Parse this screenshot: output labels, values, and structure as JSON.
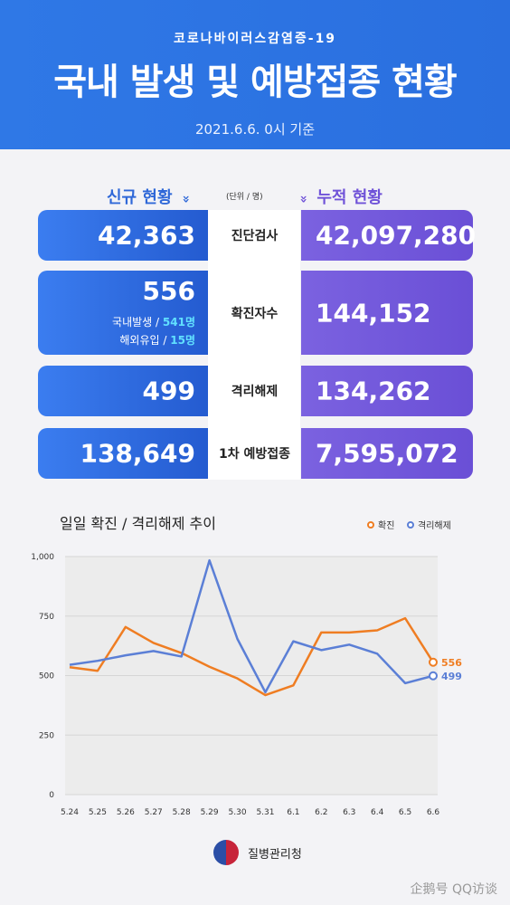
{
  "header": {
    "subtitle": "코로나바이러스감염증-19",
    "title": "국내 발생 및 예방접종 현황",
    "date": "2021.6.6. 0시 기준"
  },
  "columns": {
    "new_label": "신규 현황",
    "new_arrow": "»",
    "unit": "(단위 / 명)",
    "cum_arrow": "»",
    "cum_label": "누적 현황"
  },
  "rows": [
    {
      "label": "진단검사",
      "new": "42,363",
      "cum": "42,097,280"
    },
    {
      "label": "확진자수",
      "new": "556",
      "cum": "144,152",
      "detail": [
        {
          "prefix": "국내발생 /",
          "value": "541명"
        },
        {
          "prefix": "해외유입 /",
          "value": "15명"
        }
      ]
    },
    {
      "label": "격리해제",
      "new": "499",
      "cum": "134,262"
    },
    {
      "label": "1차 예방접종",
      "new": "138,649",
      "cum": "7,595,072"
    }
  ],
  "chart_section": {
    "title": "일일 확진 / 격리해제 추이",
    "legend": [
      "확진",
      "격리해제"
    ]
  },
  "chart_data": {
    "type": "line",
    "x": [
      "5.24",
      "5.25",
      "5.26",
      "5.27",
      "5.28",
      "5.29",
      "5.30",
      "5.31",
      "6.1",
      "6.2",
      "6.3",
      "6.4",
      "6.5",
      "6.6"
    ],
    "series": [
      {
        "name": "확진",
        "color": "#ef7d22",
        "values": [
          535,
          520,
          704,
          637,
          595,
          537,
          488,
          418,
          459,
          681,
          681,
          690,
          741,
          556
        ],
        "end_label": "556"
      },
      {
        "name": "격리해제",
        "color": "#5b7fd6",
        "values": [
          545,
          562,
          585,
          603,
          580,
          984,
          654,
          430,
          644,
          607,
          630,
          592,
          468,
          499
        ],
        "end_label": "499"
      }
    ],
    "yticks": [
      "0",
      "250",
      "500",
      "750",
      "1,000"
    ],
    "ylim": [
      0,
      1000
    ]
  },
  "footer": {
    "org": "질병관리청",
    "watermark": "企鹅号 QQ访谈"
  },
  "colors": {
    "header": "#2f78e6",
    "new_box": "#2f68d8",
    "cum_box": "#6f52d8",
    "accent": "#61e0ff"
  }
}
